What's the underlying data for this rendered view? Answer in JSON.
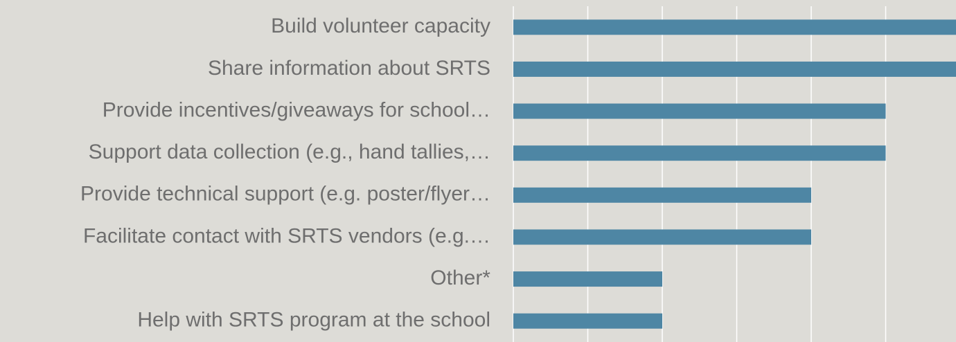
{
  "chart_data": {
    "type": "bar",
    "orientation": "horizontal",
    "categories": [
      "Build volunteer capacity",
      "Share information about SRTS",
      "Provide incentives/giveaways for school…",
      "Support data collection (e.g., hand tallies,…",
      "Provide technical support (e.g. poster/flyer…",
      "Facilitate contact with SRTS vendors (e.g.…",
      "Other*",
      "Help with SRTS program at the school"
    ],
    "values": [
      6,
      6,
      5,
      5,
      4,
      4,
      2,
      2
    ],
    "color": "#4e86a4",
    "xlim": [
      0,
      6
    ],
    "xticks": [
      0,
      1,
      2,
      3,
      4,
      5,
      6
    ],
    "grid": true
  }
}
